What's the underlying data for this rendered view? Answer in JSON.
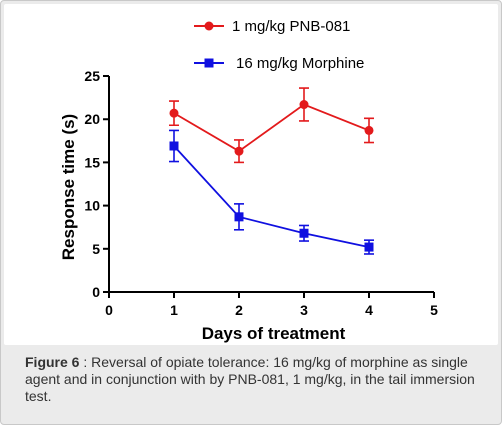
{
  "chart_data": {
    "type": "line",
    "title": "",
    "xlabel": "Days of treatment",
    "ylabel": "Response time (s)",
    "xlim": [
      0,
      5
    ],
    "ylim": [
      0,
      25
    ],
    "xticks": [
      0,
      1,
      2,
      3,
      4,
      5
    ],
    "yticks": [
      0,
      5,
      10,
      15,
      20,
      25
    ],
    "grid": false,
    "legend_position": "top",
    "series": [
      {
        "name": "1 mg/kg PNB-081",
        "marker": "circle",
        "color": "#e31a1c",
        "x": [
          1,
          2,
          3,
          4
        ],
        "y": [
          20.7,
          16.3,
          21.7,
          18.7
        ],
        "error": [
          1.4,
          1.3,
          1.9,
          1.4
        ]
      },
      {
        "name": "16 mg/kg Morphine",
        "marker": "square",
        "color": "#1010e0",
        "x": [
          1,
          2,
          3,
          4
        ],
        "y": [
          16.9,
          8.7,
          6.8,
          5.2
        ],
        "error": [
          1.8,
          1.5,
          0.9,
          0.8
        ]
      }
    ]
  },
  "caption": {
    "label": "Figure 6",
    "separator": " : ",
    "text": "Reversal of opiate tolerance: 16 mg/kg of morphine as single agent and in conjunction with by PNB-081, 1 mg/kg, in the tail immersion test."
  }
}
